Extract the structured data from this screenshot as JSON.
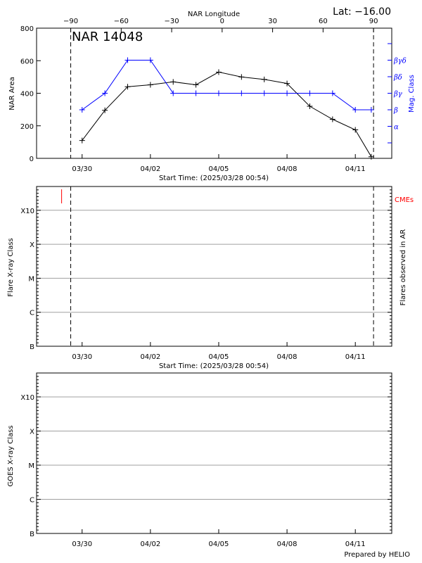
{
  "chart_data": [
    {
      "type": "line",
      "title": "NAR 14048",
      "corner_label": "Lat: −16.00",
      "top_axis_title": "NAR Longitude",
      "top_ticks": [
        "−90",
        "−60",
        "−30",
        "0",
        "30",
        "60",
        "90"
      ],
      "top_tick_values": [
        -90,
        -60,
        -30,
        0,
        30,
        60,
        90
      ],
      "xlabel": "Start Time: (2025/03/28 00:54)",
      "ylabel": "NAR Area",
      "ylabel_right": "Mag. Class",
      "ylim": [
        0,
        800
      ],
      "yticks": [
        "0",
        "200",
        "400",
        "600",
        "800"
      ],
      "ytick_values": [
        0,
        200,
        400,
        600,
        800
      ],
      "x_ticks": [
        "03/30",
        "04/02",
        "04/05",
        "04/08",
        "04/11"
      ],
      "x_tick_days": [
        2,
        5,
        8,
        11,
        14
      ],
      "x_range_days": [
        0,
        15.6
      ],
      "mag_classes": [
        "α",
        "β",
        "βγ",
        "βδ",
        "βγδ"
      ],
      "vlines_days": [
        1.5,
        14.8
      ],
      "series": [
        {
          "name": "NAR Area",
          "color": "#000000",
          "x_days": [
            2,
            3,
            4,
            5,
            6,
            7,
            8,
            9,
            10,
            11,
            12,
            13,
            14,
            14.7
          ],
          "values": [
            110,
            295,
            440,
            452,
            470,
            452,
            530,
            500,
            485,
            460,
            320,
            240,
            175,
            10
          ]
        },
        {
          "name": "Mag. Class",
          "color": "#0000ff",
          "x_days": [
            2,
            3,
            4,
            5,
            6,
            7,
            8,
            9,
            10,
            11,
            12,
            13,
            14,
            14.7
          ],
          "class_index": [
            1,
            2,
            4,
            4,
            2,
            2,
            2,
            2,
            2,
            2,
            2,
            2,
            1,
            1
          ]
        }
      ]
    },
    {
      "type": "scatter",
      "xlabel": "Start Time: (2025/03/28 00:54)",
      "ylabel": "Flare X-ray Class",
      "ylabel_right": "Flares observed in AR",
      "legend": "CMEs",
      "legend_color": "#ff0000",
      "yticks": [
        "B",
        "C",
        "M",
        "X",
        "X10"
      ],
      "x_ticks": [
        "03/30",
        "04/02",
        "04/05",
        "04/08",
        "04/11"
      ],
      "x_tick_days": [
        2,
        5,
        8,
        11,
        14
      ],
      "x_range_days": [
        0,
        15.6
      ],
      "vlines_days": [
        1.5,
        14.8
      ],
      "cme_days": [
        1.1
      ]
    },
    {
      "type": "scatter",
      "xlabel": "",
      "ylabel": "GOES X-ray Class",
      "yticks": [
        "B",
        "C",
        "M",
        "X",
        "X10"
      ],
      "x_ticks": [
        "03/30",
        "04/02",
        "04/05",
        "04/08",
        "04/11"
      ],
      "x_tick_days": [
        2,
        5,
        8,
        11,
        14
      ],
      "x_range_days": [
        0,
        15.6
      ]
    }
  ],
  "footer": "Prepared by HELIO"
}
